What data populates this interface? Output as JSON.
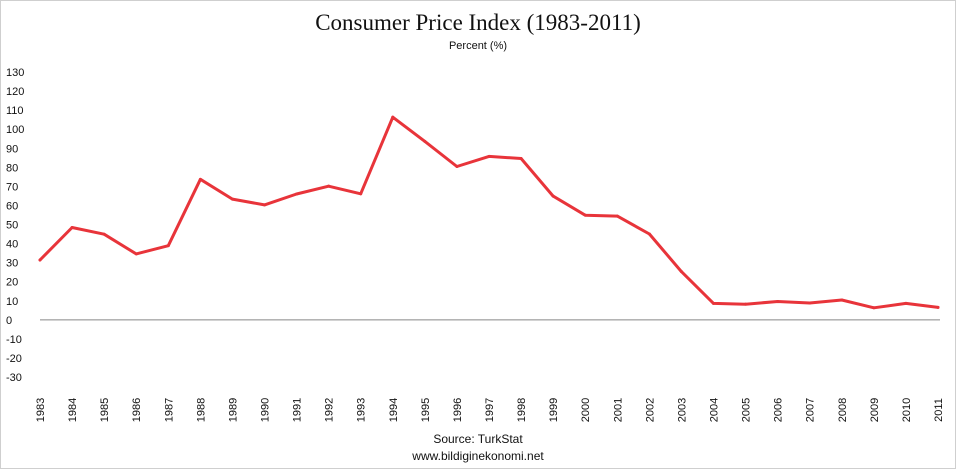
{
  "chart_data": {
    "type": "line",
    "title": "Consumer Price Index (1983-2011)",
    "subtitle": "Percent (%)",
    "source": "Source: TurkStat",
    "website": "www.bildiginekonomi.net",
    "x": [
      "1983",
      "1984",
      "1985",
      "1986",
      "1987",
      "1988",
      "1989",
      "1990",
      "1991",
      "1992",
      "1993",
      "1994",
      "1995",
      "1996",
      "1997",
      "1998",
      "1999",
      "2000",
      "2001",
      "2002",
      "2003",
      "2004",
      "2005",
      "2006",
      "2007",
      "2008",
      "2009",
      "2010",
      "2011"
    ],
    "series": [
      {
        "values": [
          31.4,
          48.4,
          44.9,
          34.6,
          38.9,
          73.7,
          63.3,
          60.3,
          66.0,
          70.1,
          66.1,
          106.3,
          93.6,
          80.4,
          85.7,
          84.6,
          64.9,
          54.9,
          54.4,
          45.0,
          25.3,
          8.6,
          8.2,
          9.6,
          8.8,
          10.4,
          6.3,
          8.6,
          6.5
        ],
        "color": "#e8343a"
      }
    ],
    "ylim": [
      -30,
      130
    ],
    "yticks": [
      -30,
      -20,
      -10,
      0,
      10,
      20,
      30,
      40,
      50,
      60,
      70,
      80,
      90,
      100,
      110,
      120,
      130
    ],
    "grid": false,
    "legend": "none"
  }
}
